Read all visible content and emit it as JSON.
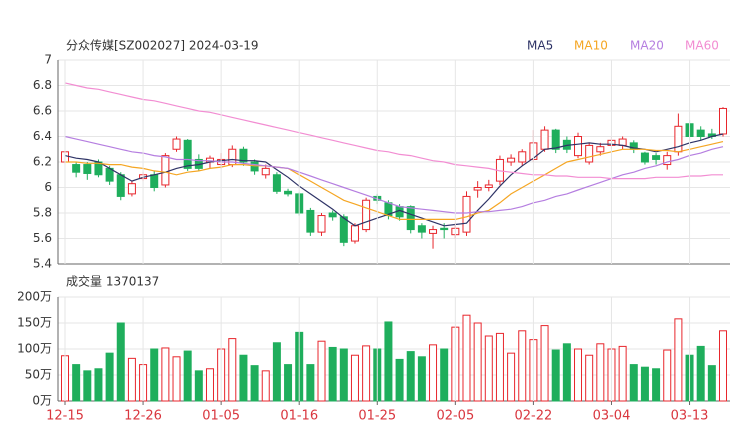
{
  "chart_data": [
    {
      "type": "candlestick",
      "title": "分众传媒[SZ002027] 2024-03-19",
      "up_color": "#e8262c",
      "down_color": "#1fae5c",
      "open": [
        6.2,
        6.18,
        6.18,
        6.2,
        6.15,
        6.1,
        5.95,
        6.07,
        6.1,
        6.02,
        6.3,
        6.37,
        6.22,
        6.2,
        6.18,
        6.18,
        6.3,
        6.2,
        6.1,
        6.1,
        5.97,
        5.95,
        5.82,
        5.65,
        5.8,
        5.77,
        5.58,
        5.67,
        5.93,
        5.88,
        5.85,
        5.85,
        5.7,
        5.64,
        5.68,
        5.63,
        5.65,
        5.98,
        6.0,
        6.05,
        6.2,
        6.2,
        6.22,
        6.3,
        6.45,
        6.37,
        6.25,
        6.2,
        6.28,
        6.33,
        6.33,
        6.35,
        6.27,
        6.25,
        6.18,
        6.28,
        6.5,
        6.45,
        6.42,
        6.42
      ],
      "high": [
        6.32,
        6.2,
        6.2,
        6.22,
        6.17,
        6.12,
        6.05,
        6.12,
        6.13,
        6.27,
        6.4,
        6.38,
        6.26,
        6.25,
        6.27,
        6.33,
        6.32,
        6.22,
        6.18,
        6.12,
        5.99,
        5.96,
        5.84,
        5.8,
        5.82,
        5.79,
        5.72,
        5.92,
        5.95,
        5.9,
        5.87,
        5.86,
        5.72,
        5.7,
        5.72,
        5.72,
        5.97,
        6.05,
        6.06,
        6.25,
        6.26,
        6.3,
        6.45,
        6.48,
        6.46,
        6.4,
        6.43,
        6.35,
        6.35,
        6.4,
        6.4,
        6.37,
        6.28,
        6.27,
        6.28,
        6.58,
        6.53,
        6.48,
        6.46,
        6.63
      ],
      "low": [
        6.15,
        6.08,
        6.06,
        6.08,
        6.02,
        5.9,
        5.93,
        6.05,
        5.97,
        6.0,
        6.28,
        6.13,
        6.13,
        6.15,
        6.15,
        6.16,
        6.17,
        6.1,
        6.07,
        5.95,
        5.93,
        5.78,
        5.62,
        5.62,
        5.74,
        5.54,
        5.56,
        5.65,
        5.87,
        5.75,
        5.74,
        5.64,
        5.6,
        5.52,
        5.6,
        5.6,
        5.62,
        5.92,
        5.97,
        6.02,
        6.17,
        6.17,
        6.2,
        6.28,
        6.27,
        6.27,
        6.23,
        6.18,
        6.25,
        6.3,
        6.3,
        6.27,
        6.18,
        6.18,
        6.14,
        6.25,
        6.37,
        6.37,
        6.38,
        6.4
      ],
      "close": [
        6.28,
        6.12,
        6.11,
        6.1,
        6.05,
        5.93,
        6.03,
        6.1,
        6.0,
        6.25,
        6.38,
        6.15,
        6.15,
        6.23,
        6.22,
        6.3,
        6.2,
        6.13,
        6.15,
        5.97,
        5.95,
        5.8,
        5.65,
        5.78,
        5.77,
        5.57,
        5.7,
        5.9,
        5.9,
        5.78,
        5.77,
        5.67,
        5.65,
        5.67,
        5.67,
        5.68,
        5.93,
        6.0,
        6.02,
        6.22,
        6.23,
        6.28,
        6.35,
        6.45,
        6.3,
        6.3,
        6.4,
        6.33,
        6.32,
        6.37,
        6.38,
        6.3,
        6.2,
        6.22,
        6.25,
        6.48,
        6.4,
        6.4,
        6.4,
        6.62
      ],
      "series": [
        {
          "name": "MA5",
          "color": "#2e3366",
          "values": [
            6.25,
            6.23,
            6.22,
            6.2,
            6.15,
            6.1,
            6.05,
            6.08,
            6.1,
            6.12,
            6.15,
            6.17,
            6.18,
            6.2,
            6.21,
            6.22,
            6.21,
            6.21,
            6.2,
            6.14,
            6.08,
            6.01,
            5.95,
            5.89,
            5.83,
            5.76,
            5.7,
            5.73,
            5.76,
            5.79,
            5.82,
            5.79,
            5.76,
            5.73,
            5.7,
            5.71,
            5.72,
            5.82,
            5.91,
            6.01,
            6.1,
            6.17,
            6.23,
            6.3,
            6.31,
            6.33,
            6.34,
            6.35,
            6.34,
            6.34,
            6.33,
            6.31,
            6.3,
            6.28,
            6.3,
            6.32,
            6.35,
            6.37,
            6.4,
            6.42
          ]
        },
        {
          "name": "MA10",
          "color": "#f5a623",
          "values": [
            6.2,
            6.2,
            6.19,
            6.19,
            6.18,
            6.18,
            6.16,
            6.15,
            6.13,
            6.12,
            6.1,
            6.12,
            6.13,
            6.15,
            6.16,
            6.18,
            6.18,
            6.17,
            6.17,
            6.16,
            6.15,
            6.1,
            6.05,
            6.0,
            5.95,
            5.9,
            5.87,
            5.84,
            5.81,
            5.78,
            5.75,
            5.75,
            5.75,
            5.75,
            5.75,
            5.75,
            5.77,
            5.8,
            5.82,
            5.88,
            5.95,
            6.0,
            6.05,
            6.1,
            6.15,
            6.2,
            6.22,
            6.24,
            6.26,
            6.28,
            6.3,
            6.3,
            6.3,
            6.29,
            6.29,
            6.28,
            6.3,
            6.32,
            6.34,
            6.36
          ]
        },
        {
          "name": "MA20",
          "color": "#b57ee0",
          "values": [
            6.4,
            6.38,
            6.36,
            6.34,
            6.32,
            6.3,
            6.28,
            6.27,
            6.25,
            6.24,
            6.22,
            6.22,
            6.21,
            6.21,
            6.2,
            6.2,
            6.19,
            6.18,
            6.17,
            6.16,
            6.15,
            6.12,
            6.09,
            6.06,
            6.03,
            6.0,
            5.97,
            5.94,
            5.91,
            5.88,
            5.85,
            5.84,
            5.83,
            5.82,
            5.81,
            5.8,
            5.8,
            5.81,
            5.81,
            5.82,
            5.83,
            5.85,
            5.88,
            5.9,
            5.93,
            5.95,
            5.98,
            6.01,
            6.04,
            6.07,
            6.1,
            6.12,
            6.15,
            6.17,
            6.2,
            6.22,
            6.25,
            6.27,
            6.3,
            6.32
          ]
        },
        {
          "name": "MA60",
          "color": "#f28dd2",
          "values": [
            6.82,
            6.8,
            6.78,
            6.77,
            6.75,
            6.73,
            6.71,
            6.69,
            6.68,
            6.66,
            6.64,
            6.62,
            6.6,
            6.59,
            6.57,
            6.55,
            6.53,
            6.51,
            6.49,
            6.47,
            6.45,
            6.43,
            6.41,
            6.39,
            6.37,
            6.35,
            6.33,
            6.31,
            6.29,
            6.28,
            6.26,
            6.25,
            6.23,
            6.21,
            6.2,
            6.18,
            6.17,
            6.16,
            6.15,
            6.13,
            6.12,
            6.11,
            6.1,
            6.1,
            6.09,
            6.09,
            6.08,
            6.08,
            6.08,
            6.07,
            6.07,
            6.07,
            6.07,
            6.08,
            6.08,
            6.08,
            6.09,
            6.09,
            6.1,
            6.1
          ]
        }
      ],
      "ylim": [
        5.4,
        7
      ],
      "yticks": [
        5.4,
        5.6,
        5.8,
        6,
        6.2,
        6.4,
        6.6,
        6.8,
        7
      ],
      "grid": true
    },
    {
      "type": "volume",
      "title": "成交量 1370137",
      "categories": [
        "12-15",
        null,
        null,
        null,
        null,
        null,
        null,
        "12-26",
        null,
        null,
        null,
        null,
        null,
        null,
        "01-05",
        null,
        null,
        null,
        null,
        null,
        null,
        "01-16",
        null,
        null,
        null,
        null,
        null,
        null,
        "01-25",
        null,
        null,
        null,
        null,
        null,
        null,
        "02-05",
        null,
        null,
        null,
        null,
        null,
        null,
        "02-22",
        null,
        null,
        null,
        null,
        null,
        null,
        "03-04",
        null,
        null,
        null,
        null,
        null,
        null,
        "03-13",
        null,
        null,
        null
      ],
      "values": [
        87,
        70,
        58,
        62,
        92,
        150,
        82,
        70,
        100,
        102,
        85,
        96,
        58,
        62,
        100,
        120,
        88,
        68,
        58,
        112,
        70,
        132,
        70,
        115,
        103,
        100,
        88,
        106,
        100,
        152,
        80,
        95,
        85,
        108,
        100,
        142,
        165,
        150,
        125,
        130,
        92,
        135,
        118,
        145,
        98,
        110,
        100,
        88,
        110,
        100,
        105,
        70,
        65,
        62,
        98,
        158,
        88,
        105,
        68,
        135
      ],
      "ylim": [
        0,
        200
      ],
      "yticks": [
        {
          "value": 0,
          "label": "0万"
        },
        {
          "value": 50,
          "label": "50万"
        },
        {
          "value": 100,
          "label": "100万"
        },
        {
          "value": 150,
          "label": "150万"
        },
        {
          "value": 200,
          "label": "200万"
        }
      ],
      "grid": true
    }
  ]
}
